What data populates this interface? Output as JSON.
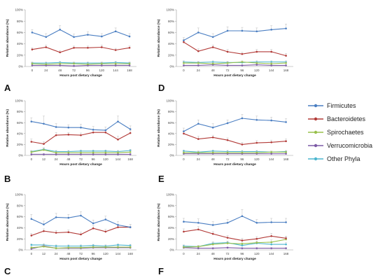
{
  "legend": [
    {
      "name": "Firmicutes",
      "color": "#4a7ec2"
    },
    {
      "name": "Bacteroidetes",
      "color": "#b23a37"
    },
    {
      "name": "Spirochaetes",
      "color": "#98c04b"
    },
    {
      "name": "Verrucomicrobia",
      "color": "#7c5aa6"
    },
    {
      "name": "Other Phyla",
      "color": "#4bb6cf"
    }
  ],
  "chart_data": [
    {
      "panel": "A",
      "type": "line",
      "x": [
        "0",
        "24",
        "48",
        "72",
        "96",
        "120",
        "144",
        "168"
      ],
      "xlabel": "Hours post dietary change",
      "ylabel": "Relative abundance (%)",
      "yticks": [
        "0%",
        "20%",
        "40%",
        "60%",
        "80%",
        "100%"
      ],
      "ylim": [
        0,
        100
      ],
      "grid": false,
      "series": [
        {
          "name": "Firmicutes",
          "values": [
            60,
            52,
            65,
            52,
            56,
            53,
            62,
            53
          ],
          "err": [
            5,
            6,
            7,
            5,
            5,
            5,
            6,
            5
          ]
        },
        {
          "name": "Bacteroidetes",
          "values": [
            30,
            34,
            25,
            33,
            33,
            34,
            29,
            33
          ],
          "err": [
            3,
            4,
            3,
            3,
            3,
            4,
            3,
            3
          ]
        },
        {
          "name": "Spirochaetes",
          "values": [
            5,
            4,
            5,
            5,
            4,
            5,
            5,
            5
          ],
          "err": [
            2,
            2,
            2,
            2,
            2,
            2,
            2,
            2
          ]
        },
        {
          "name": "Verrucomicrobia",
          "values": [
            2,
            2,
            2,
            1,
            2,
            2,
            2,
            2
          ],
          "err": [
            1,
            1,
            1,
            1,
            1,
            1,
            1,
            1
          ]
        },
        {
          "name": "Other Phyla",
          "values": [
            6,
            6,
            7,
            6,
            6,
            6,
            7,
            6
          ],
          "err": [
            2,
            2,
            2,
            2,
            2,
            2,
            2,
            2
          ]
        }
      ]
    },
    {
      "panel": "B",
      "type": "line",
      "x": [
        "0",
        "12",
        "24",
        "48",
        "72",
        "96",
        "120",
        "144",
        "168"
      ],
      "xlabel": "Hours post dietary change",
      "ylabel": "Relative abundance (%)",
      "yticks": [
        "0%",
        "20%",
        "40%",
        "60%",
        "80%",
        "100%"
      ],
      "ylim": [
        0,
        100
      ],
      "grid": false,
      "series": [
        {
          "name": "Firmicutes",
          "values": [
            62,
            58,
            52,
            51,
            51,
            47,
            46,
            62,
            48
          ],
          "err": [
            7,
            14,
            6,
            5,
            6,
            6,
            6,
            10,
            6
          ]
        },
        {
          "name": "Bacteroidetes",
          "values": [
            25,
            21,
            37,
            38,
            37,
            42,
            42,
            29,
            41
          ],
          "err": [
            5,
            4,
            5,
            4,
            4,
            5,
            5,
            6,
            5
          ]
        },
        {
          "name": "Spirochaetes",
          "values": [
            6,
            10,
            5,
            5,
            5,
            5,
            5,
            5,
            6
          ],
          "err": [
            2,
            3,
            2,
            2,
            2,
            2,
            2,
            2,
            2
          ]
        },
        {
          "name": "Verrucomicrobia",
          "values": [
            2,
            2,
            2,
            2,
            2,
            2,
            2,
            2,
            2
          ],
          "err": [
            1,
            1,
            1,
            1,
            1,
            1,
            1,
            1,
            1
          ]
        },
        {
          "name": "Other Phyla",
          "values": [
            7,
            11,
            7,
            7,
            8,
            8,
            8,
            7,
            9
          ],
          "err": [
            2,
            3,
            2,
            2,
            2,
            2,
            2,
            2,
            2
          ]
        }
      ]
    },
    {
      "panel": "C",
      "type": "line",
      "x": [
        "0",
        "12",
        "24",
        "48",
        "72",
        "96",
        "120",
        "144",
        "168"
      ],
      "xlabel": "Hours post dietary change",
      "ylabel": "Relative abundance (%)",
      "yticks": [
        "0%",
        "20%",
        "40%",
        "60%",
        "80%",
        "100%"
      ],
      "ylim": [
        0,
        100
      ],
      "grid": false,
      "series": [
        {
          "name": "Firmicutes",
          "values": [
            56,
            46,
            59,
            58,
            62,
            48,
            55,
            45,
            41
          ],
          "err": [
            8,
            6,
            7,
            6,
            7,
            6,
            6,
            6,
            5
          ]
        },
        {
          "name": "Bacteroidetes",
          "values": [
            26,
            34,
            31,
            32,
            28,
            39,
            33,
            41,
            41
          ],
          "err": [
            4,
            4,
            4,
            4,
            4,
            5,
            4,
            5,
            5
          ]
        },
        {
          "name": "Spirochaetes",
          "values": [
            4,
            6,
            3,
            4,
            4,
            5,
            5,
            5,
            5
          ],
          "err": [
            2,
            2,
            2,
            2,
            2,
            2,
            2,
            2,
            2
          ]
        },
        {
          "name": "Verrucomicrobia",
          "values": [
            2,
            7,
            3,
            3,
            3,
            4,
            4,
            4,
            4
          ],
          "err": [
            1,
            2,
            1,
            1,
            1,
            1,
            1,
            1,
            1
          ]
        },
        {
          "name": "Other Phyla",
          "values": [
            9,
            9,
            7,
            7,
            7,
            8,
            7,
            9,
            8
          ],
          "err": [
            2,
            2,
            2,
            2,
            2,
            2,
            2,
            2,
            2
          ]
        }
      ]
    },
    {
      "panel": "D",
      "type": "line",
      "x": [
        "0",
        "24",
        "48",
        "72",
        "96",
        "120",
        "144",
        "168"
      ],
      "xlabel": "Hours post dietary change",
      "ylabel": "Relative abundance (%)",
      "yticks": [
        "0%",
        "20%",
        "40%",
        "60%",
        "80%",
        "100%"
      ],
      "ylim": [
        0,
        100
      ],
      "grid": false,
      "series": [
        {
          "name": "Firmicutes",
          "values": [
            46,
            60,
            52,
            63,
            63,
            62,
            65,
            67
          ],
          "err": [
            5,
            8,
            6,
            7,
            6,
            6,
            7,
            8
          ]
        },
        {
          "name": "Bacteroidetes",
          "values": [
            43,
            27,
            34,
            26,
            22,
            26,
            26,
            19
          ],
          "err": [
            5,
            4,
            4,
            4,
            3,
            4,
            4,
            4
          ]
        },
        {
          "name": "Spirochaetes",
          "values": [
            6,
            6,
            5,
            6,
            8,
            6,
            5,
            6
          ],
          "err": [
            2,
            2,
            2,
            2,
            2,
            2,
            2,
            2
          ]
        },
        {
          "name": "Verrucomicrobia",
          "values": [
            2,
            2,
            3,
            2,
            2,
            3,
            2,
            2
          ],
          "err": [
            1,
            1,
            1,
            1,
            1,
            1,
            1,
            1
          ]
        },
        {
          "name": "Other Phyla",
          "values": [
            8,
            7,
            8,
            7,
            7,
            8,
            8,
            8
          ],
          "err": [
            2,
            2,
            2,
            2,
            2,
            2,
            2,
            2
          ]
        }
      ]
    },
    {
      "panel": "E",
      "type": "line",
      "x": [
        "0",
        "24",
        "48",
        "72",
        "96",
        "120",
        "144",
        "168"
      ],
      "xlabel": "Hours post dietary change",
      "ylabel": "Relative abundance (%)",
      "yticks": [
        "0%",
        "20%",
        "40%",
        "60%",
        "80%",
        "100%"
      ],
      "ylim": [
        0,
        100
      ],
      "grid": false,
      "series": [
        {
          "name": "Firmicutes",
          "values": [
            44,
            58,
            51,
            59,
            68,
            65,
            64,
            61
          ],
          "err": [
            6,
            7,
            7,
            6,
            7,
            7,
            6,
            6
          ]
        },
        {
          "name": "Bacteroidetes",
          "values": [
            40,
            30,
            33,
            28,
            20,
            23,
            24,
            26
          ],
          "err": [
            5,
            5,
            4,
            4,
            4,
            4,
            4,
            4
          ]
        },
        {
          "name": "Spirochaetes",
          "values": [
            5,
            5,
            5,
            5,
            5,
            5,
            6,
            6
          ],
          "err": [
            2,
            2,
            2,
            2,
            2,
            2,
            2,
            2
          ]
        },
        {
          "name": "Verrucomicrobia",
          "values": [
            3,
            3,
            3,
            3,
            3,
            3,
            3,
            3
          ],
          "err": [
            1,
            1,
            1,
            1,
            1,
            1,
            1,
            1
          ]
        },
        {
          "name": "Other Phyla",
          "values": [
            8,
            6,
            8,
            7,
            7,
            7,
            6,
            7
          ],
          "err": [
            2,
            2,
            2,
            2,
            2,
            2,
            2,
            2
          ]
        }
      ]
    },
    {
      "panel": "F",
      "type": "line",
      "x": [
        "0",
        "24",
        "48",
        "72",
        "96",
        "120",
        "144",
        "168"
      ],
      "xlabel": "Hours post dietary change",
      "ylabel": "Relative abundance (%)",
      "yticks": [
        "0%",
        "20%",
        "40%",
        "60%",
        "80%",
        "100%"
      ],
      "ylim": [
        0,
        100
      ],
      "grid": false,
      "series": [
        {
          "name": "Firmicutes",
          "values": [
            51,
            49,
            45,
            49,
            61,
            49,
            50,
            50
          ],
          "err": [
            6,
            7,
            6,
            6,
            12,
            6,
            7,
            7
          ]
        },
        {
          "name": "Bacteroidetes",
          "values": [
            33,
            37,
            29,
            22,
            17,
            20,
            25,
            21
          ],
          "err": [
            5,
            5,
            4,
            4,
            4,
            4,
            5,
            4
          ]
        },
        {
          "name": "Spirochaetes",
          "values": [
            5,
            6,
            10,
            12,
            11,
            13,
            14,
            19
          ],
          "err": [
            2,
            2,
            3,
            3,
            3,
            3,
            4,
            4
          ]
        },
        {
          "name": "Verrucomicrobia",
          "values": [
            4,
            3,
            3,
            4,
            3,
            3,
            3,
            3
          ],
          "err": [
            1,
            1,
            1,
            1,
            1,
            1,
            1,
            1
          ]
        },
        {
          "name": "Other Phyla",
          "values": [
            7,
            6,
            12,
            13,
            8,
            12,
            10,
            10
          ],
          "err": [
            2,
            2,
            3,
            3,
            2,
            3,
            3,
            3
          ]
        }
      ]
    }
  ]
}
